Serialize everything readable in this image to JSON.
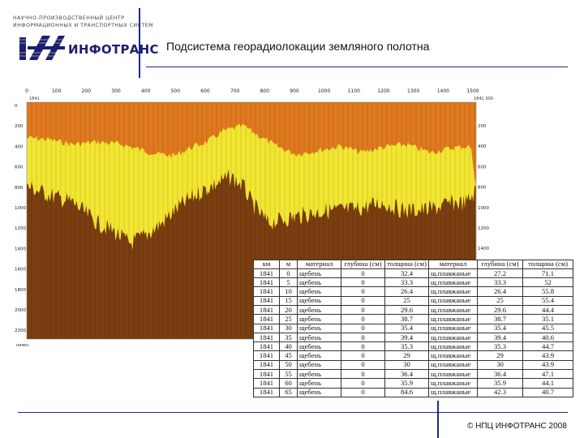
{
  "logo": {
    "line1": "НАУЧНО-ПРОИЗВОДСТВЕННЫЙ ЦЕНТР",
    "line2": "ИНФОРМАЦИОННЫХ И ТРАНСПОРТНЫХ СИСТЕМ",
    "name": "ИНФОТРАНС",
    "brand_color": "#1c1f6f"
  },
  "title": "Подсистема георадиолокации земляного полотна",
  "radar": {
    "x_ticks": [
      "0",
      "100",
      "200",
      "300",
      "400",
      "500",
      "600",
      "700",
      "800",
      "900",
      "1000",
      "1100",
      "1200",
      "1300",
      "1400",
      "1500"
    ],
    "y_ticks_left": [
      "0",
      "200",
      "400",
      "600",
      "800",
      "1000",
      "1200",
      "1400",
      "1600",
      "1800",
      "2000",
      "2200"
    ],
    "y_ticks_right": [
      "200",
      "400",
      "600",
      "800",
      "1000",
      "1200",
      "1400"
    ],
    "marker_left": "1841",
    "marker_right": "1841 300",
    "corner_label": "нимкс",
    "colors": {
      "top": "#e07a1f",
      "middle": "#f2e632",
      "bottom": "#7a3e10"
    }
  },
  "table": {
    "headers": [
      "км",
      "м",
      "материал",
      "глубина (см)",
      "толщина (см)",
      "материал",
      "глубина (см)",
      "толщина (см)"
    ],
    "rows": [
      [
        "1841",
        "0",
        "щебень",
        "0",
        "32.4",
        "щ.плавжаные",
        "27.2",
        "71.1"
      ],
      [
        "1841",
        "5",
        "щебень",
        "0",
        "33.3",
        "щ.плавжаные",
        "33.3",
        "52"
      ],
      [
        "1841",
        "10",
        "щебень",
        "0",
        "26.4",
        "щ.плавжаные",
        "26.4",
        "55.8"
      ],
      [
        "1841",
        "15",
        "щебень",
        "0",
        "25",
        "щ.плавжаные",
        "25",
        "55.4"
      ],
      [
        "1841",
        "20",
        "щебень",
        "0",
        "29.6",
        "щ.плавжаные",
        "29.6",
        "44.4"
      ],
      [
        "1841",
        "25",
        "щебень",
        "0",
        "38.7",
        "щ.плавжаные",
        "38.7",
        "35.1"
      ],
      [
        "1841",
        "30",
        "щебень",
        "0",
        "35.4",
        "щ.плавжаные",
        "35.4",
        "45.5"
      ],
      [
        "1841",
        "35",
        "щебень",
        "0",
        "39.4",
        "щ.плавжаные",
        "39.4",
        "40.6"
      ],
      [
        "1841",
        "40",
        "щебень",
        "0",
        "35.3",
        "щ.плавжаные",
        "35.3",
        "44.7"
      ],
      [
        "1841",
        "45",
        "щебень",
        "0",
        "29",
        "щ.плавжаные",
        "29",
        "43.9"
      ],
      [
        "1841",
        "50",
        "щебень",
        "0",
        "30",
        "щ.плавжаные",
        "30",
        "43.9"
      ],
      [
        "1841",
        "55",
        "щебень",
        "0",
        "36.4",
        "щ.плавжаные",
        "36.4",
        "47.1"
      ],
      [
        "1841",
        "60",
        "щебень",
        "0",
        "35.9",
        "щ.плавжаные",
        "35.9",
        "44.1"
      ],
      [
        "1841",
        "65",
        "щебень",
        "0",
        "84.6",
        "щ.плавжаные",
        "42.3",
        "40.7"
      ]
    ]
  },
  "footer": "© НПЦ ИНФОТРАНС 2008"
}
